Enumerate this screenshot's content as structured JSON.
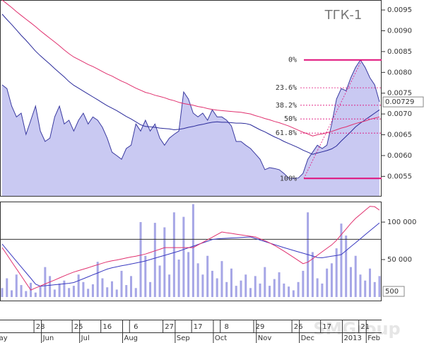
{
  "chart_data": [
    {
      "type": "area",
      "title": "ТГК-1",
      "ylim": [
        0.00503,
        0.00974
      ],
      "yticks": [
        0.0055,
        {
          "value": 0.006,
          "label": "0.0060"
        },
        0.0065,
        {
          "value": 0.007,
          "label": "0.0070"
        },
        0.0075,
        {
          "value": 0.008,
          "label": "0.0080"
        },
        0.0085,
        {
          "value": 0.009,
          "label": "0.0090"
        },
        0.0095
      ],
      "series": [
        {
          "style": "area",
          "color": "#3a3aa0",
          "fill": "#c9c9f2",
          "values": [
            0.0077,
            0.00761,
            0.00719,
            0.00693,
            0.00702,
            0.00651,
            0.00685,
            0.00719,
            0.00659,
            0.00634,
            0.00642,
            0.00693,
            0.00719,
            0.00676,
            0.00685,
            0.00659,
            0.00685,
            0.00702,
            0.00676,
            0.00693,
            0.00685,
            0.00668,
            0.00642,
            0.00608,
            0.006,
            0.00591,
            0.00617,
            0.00625,
            0.00676,
            0.00659,
            0.00685,
            0.00659,
            0.00676,
            0.00642,
            0.00625,
            0.00642,
            0.00651,
            0.00659,
            0.00753,
            0.00736,
            0.00702,
            0.00693,
            0.00702,
            0.00685,
            0.0071,
            0.00693,
            0.00693,
            0.00685,
            0.00671,
            0.00634,
            0.00634,
            0.00625,
            0.00617,
            0.00604,
            0.00591,
            0.00566,
            0.00571,
            0.00569,
            0.00566,
            0.00557,
            0.00546,
            0.00545,
            0.00546,
            0.00557,
            0.00591,
            0.00608,
            0.00625,
            0.00617,
            0.00625,
            0.00676,
            0.00736,
            0.00761,
            0.00756,
            0.00787,
            0.00812,
            0.0083,
            0.00812,
            0.00787,
            0.0077,
            0.00729
          ]
        },
        {
          "style": "line",
          "color": "#2a2a9a",
          "values": [
            0.0094,
            0.00927,
            0.00915,
            0.00902,
            0.00889,
            0.00877,
            0.00864,
            0.00851,
            0.0084,
            0.0083,
            0.0082,
            0.00809,
            0.00799,
            0.00789,
            0.00778,
            0.00769,
            0.00762,
            0.00755,
            0.00748,
            0.00741,
            0.00734,
            0.00727,
            0.0072,
            0.00714,
            0.00708,
            0.00701,
            0.00694,
            0.00688,
            0.00681,
            0.00674,
            0.0067,
            0.00669,
            0.00668,
            0.00666,
            0.00665,
            0.00664,
            0.00662,
            0.00663,
            0.00665,
            0.00668,
            0.0067,
            0.00673,
            0.00675,
            0.00678,
            0.0068,
            0.00681,
            0.0068,
            0.0068,
            0.00679,
            0.00678,
            0.00678,
            0.00677,
            0.00674,
            0.00668,
            0.00662,
            0.00657,
            0.00651,
            0.00645,
            0.0064,
            0.00634,
            0.00629,
            0.00624,
            0.00619,
            0.00613,
            0.00608,
            0.00603,
            0.00606,
            0.00609,
            0.00612,
            0.00616,
            0.00623,
            0.00635,
            0.00646,
            0.00657,
            0.00669,
            0.00678,
            0.00686,
            0.00694,
            0.00702,
            0.0071
          ]
        },
        {
          "style": "line",
          "color": "#e0306e",
          "values": [
            0.00974,
            0.00965,
            0.00956,
            0.00946,
            0.00937,
            0.00928,
            0.00919,
            0.0091,
            0.009,
            0.00891,
            0.00882,
            0.00873,
            0.00864,
            0.00854,
            0.00845,
            0.00837,
            0.00831,
            0.00825,
            0.00819,
            0.00814,
            0.00808,
            0.00802,
            0.00796,
            0.00791,
            0.00785,
            0.00779,
            0.00774,
            0.00768,
            0.00762,
            0.00757,
            0.00752,
            0.00749,
            0.00745,
            0.00742,
            0.00739,
            0.00735,
            0.00732,
            0.00728,
            0.00725,
            0.00723,
            0.00721,
            0.00718,
            0.00716,
            0.00713,
            0.00711,
            0.00709,
            0.00708,
            0.00707,
            0.00706,
            0.00705,
            0.00704,
            0.00702,
            0.007,
            0.00696,
            0.00693,
            0.00689,
            0.00686,
            0.00682,
            0.00679,
            0.00675,
            0.00671,
            0.00666,
            0.00661,
            0.00656,
            0.00652,
            0.00647,
            0.0065,
            0.00652,
            0.00655,
            0.00658,
            0.00662,
            0.00666,
            0.00669,
            0.00673,
            0.00677,
            0.0068,
            0.00683,
            0.00687,
            0.0069,
            0.00693
          ]
        }
      ],
      "fib_color": "#e0107a",
      "fib_levels": [
        {
          "label": "0%",
          "value": 0.0083
        },
        {
          "label": "23.6%",
          "value": 0.00763
        },
        {
          "label": "38.2%",
          "value": 0.00721
        },
        {
          "label": "50%",
          "value": 0.00688
        },
        {
          "label": "61.8%",
          "value": 0.00654
        },
        {
          "label": "100%",
          "value": 0.00545
        }
      ]
    },
    {
      "type": "bar",
      "color": "#a6a6e6",
      "ylim": [
        -4700,
        127400
      ],
      "yticks": [
        {
          "value": 50000,
          "label": "50 000"
        },
        {
          "value": 100000,
          "label": "100 000"
        }
      ],
      "values": [
        12000,
        25000,
        9000,
        30000,
        16000,
        8000,
        19000,
        6000,
        14000,
        40000,
        28000,
        10000,
        18000,
        22000,
        12000,
        15000,
        30000,
        20000,
        11000,
        17000,
        47000,
        25000,
        13000,
        21000,
        10000,
        35000,
        16000,
        28000,
        12000,
        100000,
        55000,
        20000,
        99000,
        42000,
        93000,
        30000,
        113000,
        50000,
        107000,
        60000,
        124000,
        45000,
        30000,
        55000,
        35000,
        25000,
        48000,
        20000,
        38000,
        15000,
        22000,
        30000,
        12000,
        28000,
        18000,
        40000,
        15000,
        24000,
        33000,
        18000,
        14000,
        9000,
        20000,
        35000,
        113000,
        60000,
        25000,
        18000,
        38000,
        45000,
        65000,
        98000,
        82000,
        40000,
        55000,
        30000,
        22000,
        38000,
        20000,
        28000
      ],
      "series": [
        {
          "color": "#3a3ac0",
          "values": [
            70700,
            63000,
            55400,
            47800,
            40200,
            32600,
            25000,
            17300,
            14500,
            15100,
            15700,
            16400,
            17000,
            17700,
            18300,
            19400,
            21900,
            24500,
            27000,
            29600,
            32100,
            34700,
            37300,
            39100,
            40400,
            41700,
            42900,
            44200,
            45400,
            46700,
            48100,
            50000,
            51900,
            53800,
            55600,
            57500,
            59400,
            61300,
            63500,
            65700,
            67900,
            70100,
            72300,
            74500,
            76700,
            77700,
            78100,
            78400,
            78800,
            79100,
            79500,
            79800,
            80200,
            78200,
            76100,
            74100,
            72000,
            70000,
            68000,
            66000,
            64100,
            62200,
            60300,
            58500,
            56600,
            54700,
            52800,
            52400,
            53400,
            54500,
            55500,
            56600,
            61900,
            67200,
            72500,
            77800,
            83100,
            88400,
            93700,
            99000
          ]
        },
        {
          "color": "#e0306e",
          "values": [
            66000,
            56600,
            47100,
            37700,
            28300,
            18800,
            9400,
            12100,
            14800,
            17500,
            20100,
            22800,
            25500,
            28200,
            30900,
            33300,
            35300,
            37200,
            39100,
            41200,
            43100,
            45100,
            47000,
            48300,
            49500,
            50800,
            52100,
            53400,
            54600,
            55900,
            57400,
            59500,
            61600,
            63700,
            66000,
            66000,
            66000,
            66000,
            66000,
            66000,
            66000,
            69500,
            72900,
            76400,
            79800,
            83300,
            86800,
            85800,
            84900,
            83900,
            83000,
            82000,
            81100,
            80200,
            77700,
            75200,
            72300,
            68900,
            65200,
            61300,
            57200,
            53000,
            48800,
            44600,
            46500,
            51100,
            55700,
            60400,
            65000,
            69600,
            75700,
            83200,
            90700,
            98200,
            104900,
            110300,
            115700,
            121000,
            120500,
            116000
          ]
        }
      ],
      "reference_line": 77000,
      "annotation": "500",
      "categories": [
        null,
        null,
        null,
        null,
        null,
        null,
        null,
        null,
        "28",
        null,
        null,
        null,
        null,
        null,
        null,
        null,
        "25",
        null,
        null,
        null,
        null,
        null,
        "16",
        null,
        null,
        null,
        null,
        null,
        "6",
        null,
        null,
        null,
        null,
        null,
        null,
        "27",
        null,
        null,
        null,
        null,
        null,
        "17",
        null,
        null,
        null,
        null,
        null,
        "8",
        null,
        null,
        null,
        null,
        null,
        null,
        "29",
        null,
        null,
        null,
        null,
        null,
        null,
        null,
        "26",
        null,
        null,
        null,
        null,
        null,
        "17",
        null,
        null,
        null,
        null,
        null,
        null,
        null,
        "21",
        null,
        null,
        null
      ],
      "month_categories": [
        "May",
        null,
        null,
        null,
        null,
        null,
        null,
        null,
        null,
        null,
        "Jun",
        null,
        null,
        null,
        null,
        null,
        null,
        null,
        "Jul",
        null,
        null,
        null,
        null,
        null,
        null,
        null,
        null,
        "Aug",
        null,
        null,
        null,
        null,
        null,
        null,
        null,
        null,
        null,
        null,
        "Sep",
        null,
        null,
        null,
        null,
        null,
        null,
        null,
        "Oct",
        null,
        null,
        null,
        null,
        null,
        null,
        null,
        null,
        "Nov",
        null,
        null,
        null,
        null,
        null,
        null,
        null,
        null,
        "Dec",
        null,
        null,
        null,
        null,
        null,
        null,
        null,
        null,
        "2013",
        null,
        null,
        null,
        null,
        "Feb",
        null
      ],
      "watermark": "SMGroup"
    }
  ]
}
